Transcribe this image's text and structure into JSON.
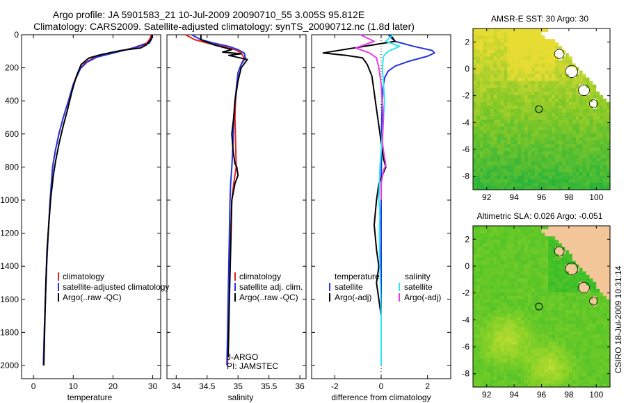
{
  "title": {
    "line1": "Argo profile: JA 5901583_21 10-Jul-2009 20090710_55 3.005S 95.812E",
    "line2": "Climatology: CARS2009. Satellite-adjusted climatology: synTS_20090712.nc (1.8d later)"
  },
  "credit": "CSIRO 18-Jul-2009 10:31:14",
  "colors": {
    "climatology": "#e8201f",
    "satellite": "#1f35e6",
    "argo": "#000000",
    "cyan": "#2ee6f0",
    "magenta": "#e63ce6"
  },
  "chart_data": [
    {
      "type": "line",
      "id": "temperature",
      "xlabel": "temperature",
      "ylabel": "",
      "xlim": [
        -3,
        32
      ],
      "ylim": [
        2080,
        0
      ],
      "xticks": [
        0,
        10,
        20,
        30
      ],
      "xtick_labels": [
        "0",
        "10",
        "20",
        "30"
      ],
      "yticks": [
        0,
        200,
        400,
        600,
        800,
        1000,
        1200,
        1400,
        1600,
        1800,
        2000
      ],
      "ytick_labels": [
        "0",
        "200",
        "400",
        "600",
        "800",
        "1000",
        "1200",
        "1400",
        "1600",
        "1800",
        "2000"
      ],
      "legend": [
        "climatology",
        "satellite-adjusted climatology",
        "Argo(..raw -QC)"
      ],
      "series": [
        {
          "name": "climatology",
          "color_key": "climatology",
          "x": [
            29.6,
            29.3,
            28.5,
            25,
            20,
            15,
            13,
            11.5,
            10,
            8.8,
            7.5,
            6.4,
            5.5,
            4.8,
            4.2,
            3.7,
            3.3,
            3.0,
            2.7,
            2.5
          ],
          "y": [
            0,
            25,
            50,
            80,
            110,
            140,
            170,
            210,
            300,
            400,
            500,
            600,
            700,
            800,
            1000,
            1200,
            1400,
            1600,
            1800,
            2000
          ]
        },
        {
          "name": "satellite-adjusted climatology",
          "color_key": "satellite",
          "x": [
            29.9,
            29.7,
            29.2,
            26,
            21,
            16,
            13.5,
            11.8,
            10,
            8.8,
            7.5,
            6.4,
            5.5,
            4.8,
            4.2,
            3.7,
            3.3,
            3.0,
            2.7,
            2.5
          ],
          "y": [
            0,
            25,
            50,
            75,
            105,
            135,
            165,
            205,
            300,
            400,
            500,
            600,
            700,
            800,
            1000,
            1200,
            1400,
            1600,
            1800,
            2000
          ]
        },
        {
          "name": "Argo(..raw -QC)",
          "color_key": "argo",
          "x": [
            29.8,
            29.8,
            29.5,
            28.5,
            27,
            22,
            17,
            14,
            12,
            10.8,
            9.6,
            8.6,
            7.5,
            6.5,
            5.6,
            5.0,
            4.3,
            4.0,
            3.4,
            3.1,
            2.9,
            2.7,
            2.6
          ],
          "y": [
            0,
            15,
            30,
            60,
            80,
            95,
            120,
            140,
            180,
            250,
            350,
            450,
            550,
            650,
            760,
            850,
            1000,
            1100,
            1300,
            1500,
            1700,
            1900,
            2000
          ]
        }
      ]
    },
    {
      "type": "line",
      "id": "salinity",
      "xlabel": "salinity",
      "xlim": [
        33.85,
        36.1
      ],
      "ylim": [
        2080,
        0
      ],
      "xticks": [
        34,
        34.5,
        35,
        35.5,
        36
      ],
      "xtick_labels": [
        "34",
        "34.5",
        "35",
        "35.5",
        "36"
      ],
      "legend": [
        "climatology",
        "satellite adj. clim.",
        "Argo(..raw -QC)"
      ],
      "annotations": [
        "J-ARGO",
        "PI: JAMSTEC"
      ],
      "series": [
        {
          "name": "climatology",
          "color_key": "climatology",
          "x": [
            34.15,
            34.3,
            34.5,
            34.75,
            34.95,
            35.05,
            35.1,
            35.05,
            35.0,
            34.98,
            34.96,
            34.95,
            34.96,
            34.97,
            34.93,
            34.9,
            34.88,
            34.86,
            34.85,
            34.84,
            34.83
          ],
          "y": [
            0,
            30,
            50,
            70,
            90,
            110,
            140,
            180,
            230,
            300,
            400,
            500,
            650,
            800,
            900,
            1000,
            1200,
            1400,
            1600,
            1800,
            2000
          ]
        },
        {
          "name": "satellite adj. clim.",
          "color_key": "satellite",
          "x": [
            34.25,
            34.4,
            34.6,
            34.85,
            35.0,
            35.1,
            35.12,
            35.05,
            35.0,
            34.98,
            34.95,
            34.93,
            34.92,
            34.9,
            34.88,
            34.87,
            34.86,
            34.85,
            34.84,
            34.83,
            34.82
          ],
          "y": [
            0,
            30,
            50,
            70,
            90,
            110,
            140,
            180,
            230,
            300,
            400,
            500,
            650,
            800,
            900,
            1000,
            1200,
            1400,
            1600,
            1800,
            2000
          ]
        },
        {
          "name": "Argo(..raw -QC)",
          "color_key": "argo",
          "x": [
            34.4,
            34.4,
            34.6,
            34.9,
            34.75,
            35.05,
            34.85,
            35.15,
            35.05,
            35.0,
            34.95,
            34.93,
            34.9,
            34.92,
            34.95,
            34.98,
            35.0,
            34.95,
            34.9,
            34.88,
            34.86,
            34.85,
            34.84
          ],
          "y": [
            0,
            30,
            60,
            90,
            105,
            115,
            125,
            150,
            200,
            280,
            400,
            500,
            600,
            700,
            780,
            800,
            850,
            900,
            1000,
            1300,
            1600,
            1800,
            1950
          ]
        }
      ]
    },
    {
      "type": "line",
      "id": "difference",
      "xlabel": "difference from climatology",
      "xlim": [
        -3,
        3
      ],
      "ylim": [
        2080,
        0
      ],
      "xticks": [
        -2,
        0,
        2
      ],
      "xtick_labels": [
        "-2",
        "0",
        "2"
      ],
      "legend_headers": [
        "temperature",
        "salinity"
      ],
      "legend": [
        "satellite",
        "Argo(-adj)",
        "satellite",
        "Argo(-adj)"
      ],
      "series": [
        {
          "name": "temperature satellite",
          "color_key": "satellite",
          "x": [
            0.3,
            0.6,
            1.4,
            2.2,
            2.3,
            2.0,
            1.2,
            0.6,
            0.3,
            0.15,
            0.08,
            0.05,
            0.03,
            0.02,
            0.01,
            0.0,
            0.0,
            0.0
          ],
          "y": [
            0,
            40,
            70,
            95,
            110,
            130,
            160,
            190,
            220,
            260,
            320,
            400,
            500,
            600,
            800,
            1000,
            1400,
            2000
          ]
        },
        {
          "name": "temperature Argo(-adj)",
          "color_key": "argo",
          "x": [
            0.4,
            0.6,
            -2.5,
            -1.5,
            -0.8,
            -0.6,
            -0.4,
            -0.3,
            -0.2,
            -0.1,
            0.0,
            0.1,
            0.2,
            0.05,
            -0.1,
            -0.2,
            -0.3,
            -0.2,
            -0.1,
            -0.2,
            0.0,
            0.0
          ],
          "y": [
            0,
            40,
            110,
            125,
            140,
            180,
            250,
            350,
            450,
            550,
            650,
            750,
            800,
            850,
            900,
            1000,
            1150,
            1300,
            1400,
            1500,
            1700,
            2000
          ]
        },
        {
          "name": "salinity satellite",
          "color_key": "cyan",
          "x": [
            0.5,
            0.2,
            0.8,
            0.3,
            0.1,
            0.05,
            0.1,
            0.15,
            0.05,
            -0.05,
            -0.1,
            -0.05,
            -0.08,
            -0.05,
            0.0,
            0.0
          ],
          "y": [
            0,
            40,
            70,
            100,
            130,
            200,
            300,
            400,
            600,
            800,
            1000,
            1100,
            1200,
            1400,
            1700,
            2000
          ]
        },
        {
          "name": "salinity Argo(-adj)",
          "color_key": "magenta",
          "x": [
            -0.9,
            -0.3,
            -1.1,
            -0.5,
            -0.2,
            -0.1,
            0.0,
            0.1,
            0.05,
            0.1,
            0.2,
            0.1,
            0.0,
            0.0
          ],
          "y": [
            0,
            40,
            80,
            110,
            140,
            200,
            300,
            500,
            650,
            700,
            790,
            820,
            900,
            1000
          ]
        }
      ]
    },
    {
      "type": "heatmap",
      "id": "sst-map",
      "title": "AMSR-E SST: 30 Argo: 30",
      "xlim": [
        91,
        101
      ],
      "ylim": [
        -9,
        3
      ],
      "xticks": [
        92,
        94,
        96,
        98,
        100
      ],
      "xtick_labels": [
        "92",
        "94",
        "96",
        "98",
        "100"
      ],
      "yticks": [
        2,
        0,
        -2,
        -4,
        -6,
        -8
      ],
      "ytick_labels": [
        "2",
        "0",
        "-2",
        "-4",
        "-6",
        "-8"
      ],
      "argo_marker": {
        "lon": 95.812,
        "lat": -3.005
      }
    },
    {
      "type": "heatmap",
      "id": "sla-map",
      "title": "Altimetric SLA: 0.026 Argo: -0.051",
      "xlim": [
        91,
        101
      ],
      "ylim": [
        -9,
        3
      ],
      "xticks": [
        92,
        94,
        96,
        98,
        100
      ],
      "xtick_labels": [
        "92",
        "94",
        "96",
        "98",
        "100"
      ],
      "yticks": [
        2,
        0,
        -2,
        -4,
        -6,
        -8
      ],
      "ytick_labels": [
        "2",
        "0",
        "-2",
        "-4",
        "-6",
        "-8"
      ],
      "argo_marker": {
        "lon": 95.812,
        "lat": -3.005
      }
    }
  ]
}
